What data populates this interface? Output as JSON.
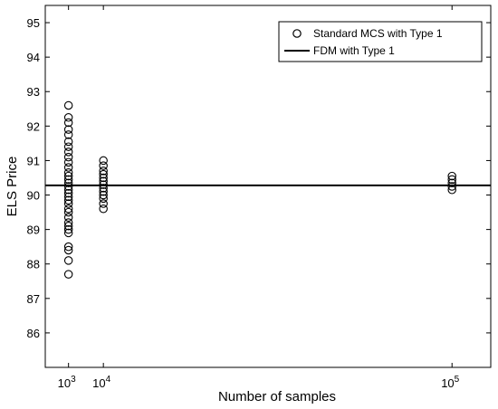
{
  "chart_data": {
    "type": "scatter",
    "xlabel": "Number of samples",
    "ylabel": "ELS Price",
    "xscale": "linear",
    "xlim": [
      -5000,
      110000
    ],
    "ylim": [
      85,
      95.5
    ],
    "yticks": [
      86,
      87,
      88,
      89,
      90,
      91,
      92,
      93,
      94,
      95
    ],
    "xticks": [
      {
        "value": 1000,
        "base": "10",
        "exp": "3"
      },
      {
        "value": 10000,
        "base": "10",
        "exp": "4"
      },
      {
        "value": 100000,
        "base": "10",
        "exp": "5"
      }
    ],
    "grid": false,
    "legend_position": "top-right",
    "series": [
      {
        "name": "Standard MCS with Type 1",
        "kind": "scatter",
        "marker": "open-circle",
        "color": "#000000",
        "points": [
          {
            "x": 1000,
            "y": 87.7
          },
          {
            "x": 1000,
            "y": 88.1
          },
          {
            "x": 1000,
            "y": 88.4
          },
          {
            "x": 1000,
            "y": 88.5
          },
          {
            "x": 1000,
            "y": 88.9
          },
          {
            "x": 1000,
            "y": 89.0
          },
          {
            "x": 1000,
            "y": 89.1
          },
          {
            "x": 1000,
            "y": 89.2
          },
          {
            "x": 1000,
            "y": 89.35
          },
          {
            "x": 1000,
            "y": 89.5
          },
          {
            "x": 1000,
            "y": 89.6
          },
          {
            "x": 1000,
            "y": 89.75
          },
          {
            "x": 1000,
            "y": 89.85
          },
          {
            "x": 1000,
            "y": 89.95
          },
          {
            "x": 1000,
            "y": 90.05
          },
          {
            "x": 1000,
            "y": 90.15
          },
          {
            "x": 1000,
            "y": 90.25
          },
          {
            "x": 1000,
            "y": 90.35
          },
          {
            "x": 1000,
            "y": 90.45
          },
          {
            "x": 1000,
            "y": 90.55
          },
          {
            "x": 1000,
            "y": 90.65
          },
          {
            "x": 1000,
            "y": 90.8
          },
          {
            "x": 1000,
            "y": 90.95
          },
          {
            "x": 1000,
            "y": 91.1
          },
          {
            "x": 1000,
            "y": 91.25
          },
          {
            "x": 1000,
            "y": 91.4
          },
          {
            "x": 1000,
            "y": 91.55
          },
          {
            "x": 1000,
            "y": 91.75
          },
          {
            "x": 1000,
            "y": 91.9
          },
          {
            "x": 1000,
            "y": 92.1
          },
          {
            "x": 1000,
            "y": 92.25
          },
          {
            "x": 1000,
            "y": 92.6
          },
          {
            "x": 10000,
            "y": 89.6
          },
          {
            "x": 10000,
            "y": 89.75
          },
          {
            "x": 10000,
            "y": 89.9
          },
          {
            "x": 10000,
            "y": 90.0
          },
          {
            "x": 10000,
            "y": 90.1
          },
          {
            "x": 10000,
            "y": 90.2
          },
          {
            "x": 10000,
            "y": 90.3
          },
          {
            "x": 10000,
            "y": 90.4
          },
          {
            "x": 10000,
            "y": 90.5
          },
          {
            "x": 10000,
            "y": 90.6
          },
          {
            "x": 10000,
            "y": 90.7
          },
          {
            "x": 10000,
            "y": 90.85
          },
          {
            "x": 10000,
            "y": 91.0
          },
          {
            "x": 100000,
            "y": 90.15
          },
          {
            "x": 100000,
            "y": 90.25
          },
          {
            "x": 100000,
            "y": 90.35
          },
          {
            "x": 100000,
            "y": 90.45
          },
          {
            "x": 100000,
            "y": 90.55
          }
        ]
      },
      {
        "name": "FDM with Type 1",
        "kind": "hline",
        "color": "#000000",
        "y": 90.28
      }
    ]
  }
}
